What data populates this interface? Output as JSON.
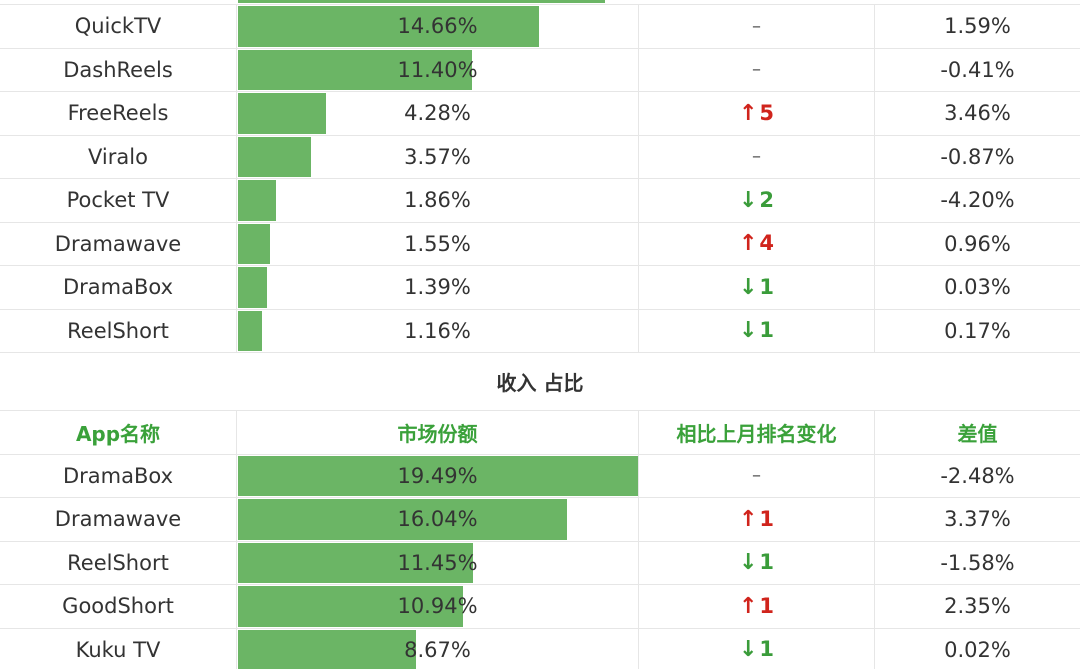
{
  "section1": {
    "rows": [
      {
        "name": "QuickTV",
        "share": "14.66%",
        "share_value": 14.66,
        "rank_dir": "none",
        "rank_text": "–",
        "diff": "1.59%"
      },
      {
        "name": "DashReels",
        "share": "11.40%",
        "share_value": 11.4,
        "rank_dir": "none",
        "rank_text": "–",
        "diff": "-0.41%"
      },
      {
        "name": "FreeReels",
        "share": "4.28%",
        "share_value": 4.28,
        "rank_dir": "up",
        "rank_text": "5",
        "diff": "3.46%"
      },
      {
        "name": "Viralo",
        "share": "3.57%",
        "share_value": 3.57,
        "rank_dir": "none",
        "rank_text": "–",
        "diff": "-0.87%"
      },
      {
        "name": "Pocket TV",
        "share": "1.86%",
        "share_value": 1.86,
        "rank_dir": "down",
        "rank_text": "2",
        "diff": "-4.20%"
      },
      {
        "name": "Dramawave",
        "share": "1.55%",
        "share_value": 1.55,
        "rank_dir": "up",
        "rank_text": "4",
        "diff": "0.96%"
      },
      {
        "name": "DramaBox",
        "share": "1.39%",
        "share_value": 1.39,
        "rank_dir": "down",
        "rank_text": "1",
        "diff": "0.03%"
      },
      {
        "name": "ReelShort",
        "share": "1.16%",
        "share_value": 1.16,
        "rank_dir": "down",
        "rank_text": "1",
        "diff": "0.17%"
      }
    ]
  },
  "section2": {
    "title": "收入 占比",
    "headers": {
      "name": "App名称",
      "share": "市场份额",
      "rank": "相比上月排名变化",
      "diff": "差值"
    },
    "rows": [
      {
        "name": "DramaBox",
        "share": "19.49%",
        "share_value": 19.49,
        "rank_dir": "none",
        "rank_text": "–",
        "diff": "-2.48%"
      },
      {
        "name": "Dramawave",
        "share": "16.04%",
        "share_value": 16.04,
        "rank_dir": "up",
        "rank_text": "1",
        "diff": "3.37%"
      },
      {
        "name": "ReelShort",
        "share": "11.45%",
        "share_value": 11.45,
        "rank_dir": "down",
        "rank_text": "1",
        "diff": "-1.58%"
      },
      {
        "name": "GoodShort",
        "share": "10.94%",
        "share_value": 10.94,
        "rank_dir": "up",
        "rank_text": "1",
        "diff": "2.35%"
      },
      {
        "name": "Kuku TV",
        "share": "8.67%",
        "share_value": 8.67,
        "rank_dir": "down",
        "rank_text": "1",
        "diff": "0.02%"
      }
    ]
  },
  "colors": {
    "bar": "#6bb565",
    "header_text": "#3aa13a",
    "up": "#d0241c",
    "down": "#3a9c3a"
  },
  "icons": {
    "up": "arrow-up-icon",
    "down": "arrow-down-icon"
  }
}
